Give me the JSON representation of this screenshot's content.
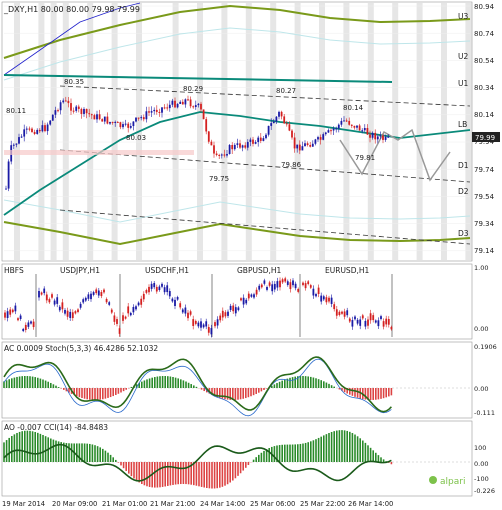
{
  "main": {
    "title": "_DXY,H1  80.00 80.00 79.98 79.99",
    "price_labels": [
      "80.94",
      "80.74",
      "80.54",
      "80.34",
      "80.14",
      "79.99",
      "79.94",
      "79.74",
      "79.54",
      "79.34",
      "79.14"
    ],
    "level_labels": [
      "U3",
      "U2",
      "U1",
      "LB",
      "D1",
      "D2",
      "D3"
    ],
    "point_labels": [
      "80.11",
      "80.35",
      "80.03",
      "80.29",
      "80.27",
      "80.14",
      "79.75",
      "79.86",
      "79.81"
    ],
    "current_price": "79.99"
  },
  "sub1": {
    "title": "HBFS",
    "symbols": [
      "USDJPY,H1",
      "USDCHF,H1",
      "GBPUSD,H1",
      "EURUSD,H1"
    ],
    "axis_labels": [
      "1.00",
      "0.00"
    ]
  },
  "sub2": {
    "title": "AC 0.0009  Stoch(5,3,3) 46.4286 52.1032",
    "axis_labels": [
      "0.1906",
      "0.00",
      "-0.111"
    ]
  },
  "sub3": {
    "title": "AO -0.007  CCI(14) -84.8483",
    "axis_labels": [
      "100",
      "0.00",
      "-100",
      "-0.226"
    ]
  },
  "xaxis": {
    "labels": [
      "19 Mar 2014",
      "20 Mar 09:00",
      "21 Mar 01:00",
      "21 Mar 21:00",
      "24 Mar 14:00",
      "25 Mar 06:00",
      "25 Mar 22:00",
      "26 Mar 14:00"
    ]
  },
  "brand": {
    "name": "alpari",
    "color": "#7dc24b"
  },
  "colors": {
    "bull": "#1a1aa6",
    "bear": "#d42020",
    "channel": "#7a9a1a",
    "trend": "#0a8a7a"
  }
}
